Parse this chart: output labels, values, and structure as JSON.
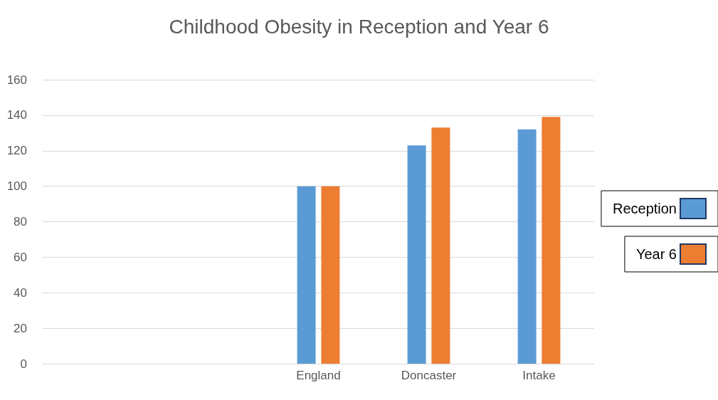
{
  "chart_data": {
    "type": "bar",
    "title": "Childhood Obesity in Reception and Year 6",
    "categories": [
      null,
      null,
      "England",
      "Doncaster",
      "Intake"
    ],
    "series": [
      {
        "name": "Reception",
        "color": "#5b9bd5",
        "values": [
          null,
          null,
          100,
          123,
          132
        ]
      },
      {
        "name": "Year 6",
        "color": "#ed7d31",
        "values": [
          null,
          null,
          100,
          133,
          139
        ]
      }
    ],
    "ylim": [
      0,
      160
    ],
    "yticks": [
      0,
      20,
      40,
      60,
      80,
      100,
      120,
      140,
      160
    ],
    "grid": "y",
    "legend": "right"
  }
}
